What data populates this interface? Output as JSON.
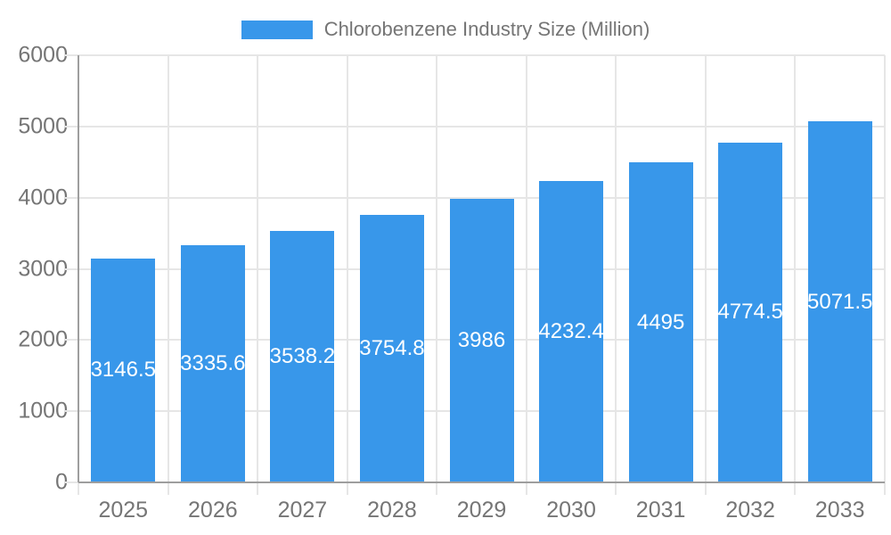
{
  "colors": {
    "bar": "#3897EA",
    "axisLine": "#9E9E9E",
    "gridLine": "#E6E6E6",
    "text": "#757575",
    "valueText": "#FFFFFF",
    "background": "#FFFFFF"
  },
  "legend": {
    "position": "top-center"
  },
  "chart_data": {
    "type": "bar",
    "title": "Chlorobenzene Industry Size (Million)",
    "categories": [
      "2025",
      "2026",
      "2027",
      "2028",
      "2029",
      "2030",
      "2031",
      "2032",
      "2033"
    ],
    "values": [
      3146.5,
      3335.6,
      3538.2,
      3754.8,
      3986,
      4232.4,
      4495,
      4774.5,
      5071.5
    ],
    "xlabel": "",
    "ylabel": "",
    "ylim": [
      0,
      6000
    ],
    "y_ticks": [
      0,
      1000,
      2000,
      3000,
      4000,
      5000,
      6000
    ],
    "grid": true,
    "legend_position": "top",
    "value_label_position": "inside-center"
  }
}
